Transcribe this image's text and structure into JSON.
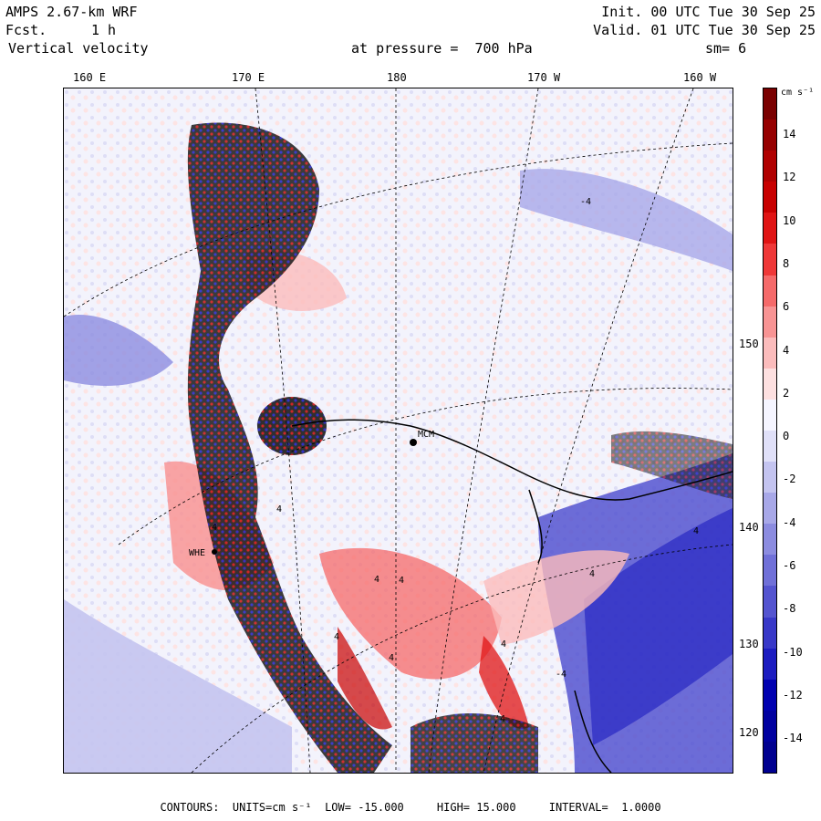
{
  "header": {
    "model": "AMPS 2.67-km WRF",
    "fcst_label": "Fcst.",
    "fcst_value": "1 h",
    "variable": "Vertical velocity",
    "init": "Init. 00 UTC Tue 30 Sep 25",
    "valid": "Valid. 01 UTC Tue 30 Sep 25",
    "pressure": "at pressure =  700 hPa",
    "smoothing": "sm= 6"
  },
  "longitude_labels": [
    "160 E",
    "170 E",
    "180",
    "170 W",
    "160 W"
  ],
  "latitude_labels": [
    "150 W",
    "140 W",
    "130 W",
    "120 W"
  ],
  "colorbar": {
    "unit": "cm s⁻¹",
    "ticks": [
      "14",
      "12",
      "10",
      "8",
      "6",
      "4",
      "2",
      "0",
      "-2",
      "-4",
      "-6",
      "-8",
      "-10",
      "-12",
      "-14"
    ],
    "colors": [
      "#7a0000",
      "#960000",
      "#b00000",
      "#c80000",
      "#e01414",
      "#ef3838",
      "#f56a6a",
      "#f89494",
      "#fbbcbc",
      "#fde0e0",
      "#f5f5ff",
      "#e0e0f8",
      "#c4c4f0",
      "#a8a8e8",
      "#8c8ce0",
      "#7070d8",
      "#5454d0",
      "#3838c8",
      "#1c1cc0",
      "#0000b0",
      "#0000a0",
      "#000090"
    ]
  },
  "station_labels": {
    "mcm": "MCM",
    "whe": "WHE"
  },
  "contour_labels": [
    "4",
    "-4",
    "4",
    "4",
    "4",
    "4",
    "4",
    "4",
    "-4",
    "4",
    "4",
    "4"
  ],
  "footer": {
    "contours_label": "CONTOURS:",
    "units": "UNITS=cm s⁻¹",
    "low": "LOW= -15.000",
    "high": "HIGH= 15.000",
    "interval": "INTERVAL=  1.0000"
  }
}
